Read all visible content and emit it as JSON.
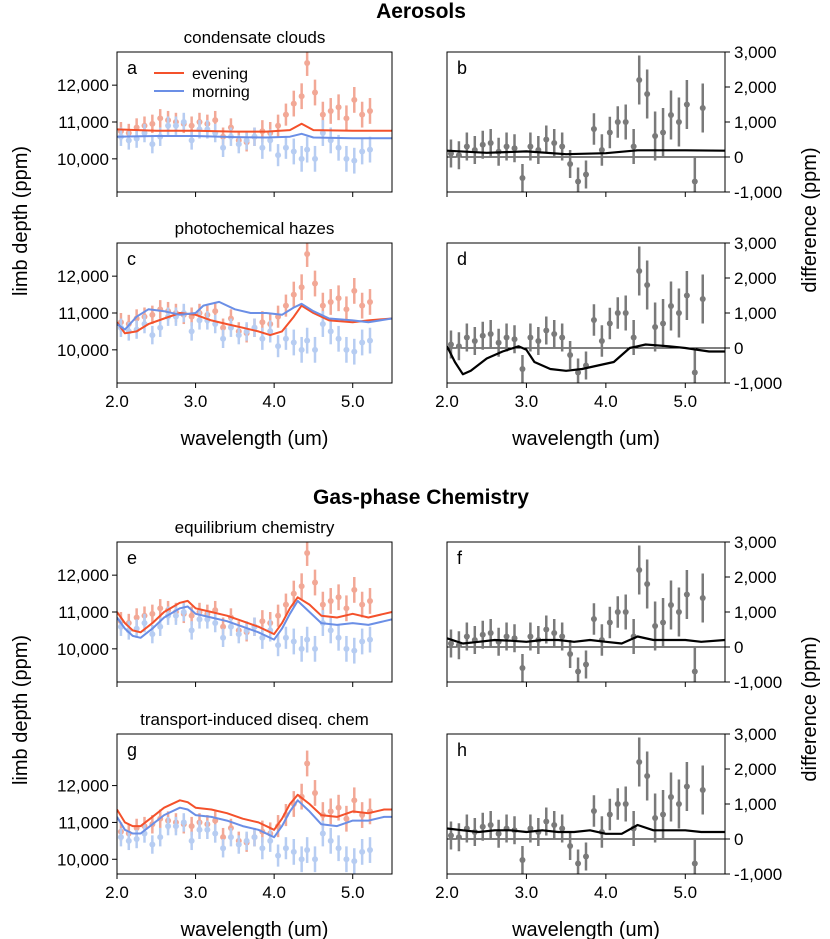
{
  "figure": {
    "section_titles": [
      "Aerosols",
      "Gas-phase Chemistry"
    ],
    "ylabel_left": "limb depth (ppm)",
    "ylabel_right": "difference (ppm)",
    "xlabel": "wavelength (um)",
    "legend": {
      "evening": "evening",
      "morning": "morning"
    },
    "colors": {
      "evening": "#f4512b",
      "morning": "#6b8fe6",
      "evening_data": "#f2a896",
      "morning_data": "#b7cdf2",
      "difference_model": "#000000",
      "difference_data": "#7a7a7a"
    }
  },
  "chart_data": [
    {
      "type": "line",
      "panel": "a",
      "title": "condensate clouds",
      "xlabel": "",
      "ylabel": "limb depth (ppm)",
      "xlim": [
        2.0,
        5.5
      ],
      "ylim": [
        9100,
        12900
      ],
      "xticks": [
        2.0,
        3.0,
        4.0,
        5.0
      ],
      "xtick_labels": [
        "2.0",
        "3.0",
        "4.0",
        "5.0"
      ],
      "yticks": [
        10000,
        11000,
        12000
      ],
      "ytick_labels": [
        "10,000",
        "11,000",
        "12,000"
      ],
      "legend": "top-left",
      "series": [
        {
          "name": "evening",
          "x": [
            2.0,
            2.5,
            3.0,
            3.5,
            3.9,
            4.2,
            4.35,
            4.5,
            5.0,
            5.5
          ],
          "y": [
            10800,
            10760,
            10760,
            10740,
            10740,
            10780,
            10950,
            10780,
            10760,
            10760
          ]
        },
        {
          "name": "morning",
          "x": [
            2.0,
            2.5,
            3.0,
            3.5,
            3.9,
            4.2,
            4.35,
            4.5,
            5.0,
            5.5
          ],
          "y": [
            10600,
            10620,
            10620,
            10590,
            10580,
            10600,
            10680,
            10580,
            10560,
            10560
          ]
        }
      ]
    },
    {
      "type": "line",
      "panel": "b",
      "title": "",
      "xlabel": "",
      "ylabel": "difference (ppm)",
      "xlim": [
        2.0,
        5.5
      ],
      "ylim": [
        -1000,
        3000
      ],
      "xticks": [
        2.0,
        3.0,
        4.0,
        5.0
      ],
      "xtick_labels": [
        "2.0",
        "3.0",
        "4.0",
        "5.0"
      ],
      "yticks": [
        -1000,
        0,
        1000,
        2000,
        3000
      ],
      "ytick_labels": [
        "-1,000",
        "0",
        "1,000",
        "2,000",
        "3,000"
      ],
      "series": [
        {
          "x": [
            2.0,
            2.5,
            3.0,
            3.5,
            4.0,
            4.4,
            5.0,
            5.5
          ],
          "y": [
            180,
            120,
            160,
            80,
            110,
            190,
            190,
            180
          ]
        }
      ]
    },
    {
      "type": "line",
      "panel": "c",
      "title": "photochemical hazes",
      "xlabel": "",
      "ylabel": "limb depth (ppm)",
      "xlim": [
        2.0,
        5.5
      ],
      "ylim": [
        9100,
        12900
      ],
      "xticks": [
        2.0,
        3.0,
        4.0,
        5.0
      ],
      "xtick_labels": [
        "2.0",
        "3.0",
        "4.0",
        "5.0"
      ],
      "yticks": [
        10000,
        11000,
        12000
      ],
      "ytick_labels": [
        "10,000",
        "11,000",
        "12,000"
      ],
      "series": [
        {
          "name": "evening",
          "x": [
            2.0,
            2.1,
            2.25,
            2.4,
            2.6,
            2.8,
            3.0,
            3.2,
            3.4,
            3.6,
            3.8,
            3.95,
            4.1,
            4.25,
            4.35,
            4.5,
            4.7,
            5.0,
            5.2,
            5.5
          ],
          "y": [
            10750,
            10450,
            10500,
            10700,
            10850,
            11000,
            10950,
            10800,
            10700,
            10600,
            10500,
            10400,
            10500,
            10900,
            11200,
            11000,
            10800,
            10750,
            10800,
            10850
          ]
        },
        {
          "name": "morning",
          "x": [
            2.0,
            2.1,
            2.25,
            2.4,
            2.6,
            2.8,
            3.0,
            3.1,
            3.3,
            3.5,
            3.7,
            3.9,
            4.1,
            4.25,
            4.35,
            4.5,
            4.7,
            5.0,
            5.2,
            5.5
          ],
          "y": [
            10700,
            10550,
            10900,
            11100,
            11050,
            10950,
            11000,
            11200,
            11300,
            11100,
            11000,
            11000,
            10950,
            11150,
            11250,
            11050,
            10850,
            10800,
            10750,
            10850
          ]
        }
      ]
    },
    {
      "type": "line",
      "panel": "d",
      "title": "",
      "xlabel": "wavelength (um)",
      "ylabel": "difference (ppm)",
      "xlim": [
        2.0,
        5.5
      ],
      "ylim": [
        -1000,
        3000
      ],
      "xticks": [
        2.0,
        3.0,
        4.0,
        5.0
      ],
      "xtick_labels": [
        "2.0",
        "3.0",
        "4.0",
        "5.0"
      ],
      "yticks": [
        -1000,
        0,
        1000,
        2000,
        3000
      ],
      "ytick_labels": [
        "-1,000",
        "0",
        "1,000",
        "2,000",
        "3,000"
      ],
      "series": [
        {
          "x": [
            2.0,
            2.1,
            2.2,
            2.3,
            2.5,
            2.7,
            2.9,
            3.0,
            3.1,
            3.3,
            3.5,
            3.7,
            3.9,
            4.1,
            4.3,
            4.5,
            4.8,
            5.0,
            5.3,
            5.5
          ],
          "y": [
            50,
            -400,
            -750,
            -650,
            -300,
            -100,
            50,
            -50,
            -400,
            -600,
            -650,
            -600,
            -500,
            -400,
            0,
            100,
            50,
            0,
            -100,
            -100
          ]
        }
      ]
    },
    {
      "type": "line",
      "panel": "e",
      "title": "equilibrium chemistry",
      "xlabel": "",
      "ylabel": "limb depth (ppm)",
      "xlim": [
        2.0,
        5.5
      ],
      "ylim": [
        9100,
        12900
      ],
      "xticks": [
        2.0,
        3.0,
        4.0,
        5.0
      ],
      "xtick_labels": [
        "2.0",
        "3.0",
        "4.0",
        "5.0"
      ],
      "yticks": [
        10000,
        11000,
        12000
      ],
      "ytick_labels": [
        "10,000",
        "11,000",
        "12,000"
      ],
      "series": [
        {
          "name": "evening",
          "x": [
            2.0,
            2.1,
            2.2,
            2.3,
            2.45,
            2.6,
            2.8,
            2.9,
            3.0,
            3.2,
            3.4,
            3.6,
            3.8,
            4.0,
            4.1,
            4.2,
            4.3,
            4.45,
            4.6,
            4.8,
            5.0,
            5.2,
            5.4,
            5.5
          ],
          "y": [
            11000,
            10700,
            10500,
            10450,
            10700,
            11000,
            11250,
            11300,
            11100,
            11000,
            10900,
            10750,
            10600,
            10400,
            10700,
            11100,
            11400,
            11200,
            10900,
            10850,
            10950,
            10850,
            10950,
            11000
          ]
        },
        {
          "name": "morning",
          "x": [
            2.0,
            2.1,
            2.2,
            2.3,
            2.45,
            2.6,
            2.8,
            2.9,
            3.0,
            3.2,
            3.4,
            3.6,
            3.8,
            4.0,
            4.1,
            4.2,
            4.3,
            4.45,
            4.6,
            4.8,
            5.0,
            5.2,
            5.4,
            5.5
          ],
          "y": [
            10850,
            10550,
            10350,
            10300,
            10550,
            10850,
            11100,
            11150,
            10950,
            10850,
            10750,
            10600,
            10450,
            10250,
            10550,
            10950,
            11300,
            11000,
            10700,
            10650,
            10700,
            10650,
            10750,
            10800
          ]
        }
      ]
    },
    {
      "type": "line",
      "panel": "f",
      "title": "",
      "xlabel": "",
      "ylabel": "difference (ppm)",
      "xlim": [
        2.0,
        5.5
      ],
      "ylim": [
        -1000,
        3000
      ],
      "xticks": [
        2.0,
        3.0,
        4.0,
        5.0
      ],
      "xtick_labels": [
        "2.0",
        "3.0",
        "4.0",
        "5.0"
      ],
      "yticks": [
        -1000,
        0,
        1000,
        2000,
        3000
      ],
      "ytick_labels": [
        "-1,000",
        "0",
        "1,000",
        "2,000",
        "3,000"
      ],
      "series": [
        {
          "x": [
            2.0,
            2.2,
            2.4,
            2.6,
            2.8,
            3.0,
            3.2,
            3.4,
            3.6,
            3.8,
            4.0,
            4.2,
            4.4,
            4.6,
            4.8,
            5.0,
            5.2,
            5.5
          ],
          "y": [
            250,
            100,
            150,
            200,
            180,
            150,
            200,
            200,
            150,
            200,
            150,
            100,
            300,
            200,
            200,
            200,
            150,
            200
          ]
        }
      ]
    },
    {
      "type": "line",
      "panel": "g",
      "title": "transport-induced diseq. chem",
      "xlabel": "",
      "ylabel": "limb depth (ppm)",
      "xlim": [
        2.0,
        5.5
      ],
      "ylim": [
        9600,
        13400
      ],
      "xticks": [
        2.0,
        3.0,
        4.0,
        5.0
      ],
      "xtick_labels": [
        "2.0",
        "3.0",
        "4.0",
        "5.0"
      ],
      "yticks": [
        10000,
        11000,
        12000
      ],
      "ytick_labels": [
        "10,000",
        "11,000",
        "12,000"
      ],
      "series": [
        {
          "name": "evening",
          "x": [
            2.0,
            2.1,
            2.2,
            2.3,
            2.45,
            2.6,
            2.8,
            2.9,
            3.0,
            3.2,
            3.4,
            3.6,
            3.8,
            4.0,
            4.1,
            4.2,
            4.3,
            4.45,
            4.6,
            4.8,
            5.0,
            5.2,
            5.4,
            5.5
          ],
          "y": [
            11350,
            11000,
            10900,
            10900,
            11150,
            11400,
            11600,
            11550,
            11400,
            11350,
            11250,
            11100,
            11000,
            10800,
            11100,
            11500,
            11750,
            11500,
            11200,
            11150,
            11300,
            11250,
            11350,
            11350
          ]
        },
        {
          "name": "morning",
          "x": [
            2.0,
            2.1,
            2.2,
            2.3,
            2.45,
            2.6,
            2.8,
            2.9,
            3.0,
            3.2,
            3.4,
            3.6,
            3.8,
            4.0,
            4.1,
            4.2,
            4.3,
            4.45,
            4.6,
            4.8,
            5.0,
            5.2,
            5.4,
            5.5
          ],
          "y": [
            11150,
            10800,
            10700,
            10700,
            10950,
            11200,
            11400,
            11350,
            11200,
            11150,
            11050,
            10900,
            10800,
            10600,
            10900,
            11300,
            11600,
            11300,
            10950,
            10900,
            11050,
            11050,
            11150,
            11150
          ]
        }
      ]
    },
    {
      "type": "line",
      "panel": "h",
      "title": "",
      "xlabel": "wavelength (um)",
      "ylabel": "difference (ppm)",
      "xlim": [
        2.0,
        5.5
      ],
      "ylim": [
        -1000,
        3000
      ],
      "xticks": [
        2.0,
        3.0,
        4.0,
        5.0
      ],
      "xtick_labels": [
        "2.0",
        "3.0",
        "4.0",
        "5.0"
      ],
      "yticks": [
        -1000,
        0,
        1000,
        2000,
        3000
      ],
      "ytick_labels": [
        "-1,000",
        "0",
        "1,000",
        "2,000",
        "3,000"
      ],
      "series": [
        {
          "x": [
            2.0,
            2.2,
            2.4,
            2.6,
            2.8,
            3.0,
            3.2,
            3.4,
            3.6,
            3.8,
            4.0,
            4.2,
            4.4,
            4.6,
            4.8,
            5.0,
            5.2,
            5.5
          ],
          "y": [
            300,
            250,
            200,
            250,
            250,
            200,
            250,
            200,
            200,
            250,
            150,
            150,
            400,
            250,
            250,
            250,
            200,
            200
          ]
        }
      ]
    }
  ],
  "observations": {
    "evening": {
      "x": [
        2.05,
        2.15,
        2.25,
        2.35,
        2.45,
        2.55,
        2.65,
        2.75,
        2.85,
        2.95,
        3.05,
        3.15,
        3.25,
        3.35,
        3.45,
        3.55,
        3.65,
        3.75,
        3.85,
        3.95,
        4.05,
        4.15,
        4.25,
        4.35,
        4.42,
        4.52,
        4.62,
        4.72,
        4.82,
        4.92,
        5.02,
        5.12,
        5.22
      ],
      "y": [
        10750,
        10700,
        10850,
        10900,
        10950,
        11100,
        11050,
        11000,
        10950,
        10900,
        11000,
        10950,
        11050,
        10600,
        10850,
        10500,
        10450,
        10600,
        10750,
        10700,
        10900,
        11200,
        11500,
        11700,
        12600,
        11800,
        11200,
        11300,
        11400,
        11100,
        11600,
        11200,
        11300
      ],
      "err": [
        250,
        250,
        250,
        250,
        250,
        250,
        250,
        250,
        250,
        250,
        250,
        250,
        250,
        250,
        250,
        250,
        250,
        250,
        300,
        300,
        300,
        300,
        350,
        350,
        350,
        350,
        350,
        350,
        350,
        350,
        350,
        350,
        350
      ]
    },
    "morning": {
      "x": [
        2.05,
        2.15,
        2.25,
        2.35,
        2.45,
        2.55,
        2.65,
        2.75,
        2.85,
        2.95,
        3.05,
        3.15,
        3.25,
        3.35,
        3.45,
        3.55,
        3.65,
        3.75,
        3.85,
        3.95,
        4.05,
        4.15,
        4.25,
        4.35,
        4.42,
        4.52,
        4.62,
        4.72,
        4.82,
        4.92,
        5.02,
        5.12,
        5.22
      ],
      "y": [
        10600,
        10500,
        10550,
        10700,
        10400,
        10600,
        10900,
        10900,
        11000,
        10500,
        10800,
        10800,
        10700,
        10300,
        10600,
        10400,
        10500,
        10600,
        10300,
        10500,
        10100,
        10300,
        10200,
        10000,
        10250,
        10000,
        10700,
        10500,
        10300,
        10000,
        9950,
        10200,
        10250
      ],
      "err": [
        250,
        250,
        250,
        250,
        250,
        250,
        250,
        250,
        250,
        250,
        250,
        250,
        250,
        250,
        250,
        250,
        250,
        250,
        300,
        300,
        300,
        300,
        350,
        350,
        350,
        350,
        350,
        350,
        350,
        350,
        350,
        350,
        350
      ]
    },
    "difference": {
      "x": [
        2.05,
        2.15,
        2.25,
        2.35,
        2.45,
        2.55,
        2.65,
        2.75,
        2.85,
        2.95,
        3.05,
        3.15,
        3.25,
        3.35,
        3.45,
        3.55,
        3.65,
        3.75,
        3.85,
        3.95,
        4.05,
        4.15,
        4.25,
        4.35,
        4.42,
        4.52,
        4.62,
        4.72,
        4.82,
        4.92,
        5.02,
        5.12,
        5.22
      ],
      "y": [
        100,
        50,
        300,
        200,
        350,
        400,
        150,
        300,
        250,
        -600,
        300,
        200,
        500,
        400,
        300,
        -200,
        -700,
        -500,
        800,
        200,
        700,
        1000,
        1000,
        300,
        2200,
        1800,
        600,
        700,
        1200,
        1000,
        1500,
        -700,
        1400
      ],
      "err": [
        400,
        400,
        400,
        400,
        400,
        400,
        400,
        400,
        400,
        400,
        400,
        400,
        400,
        400,
        400,
        400,
        400,
        400,
        450,
        450,
        450,
        450,
        500,
        500,
        700,
        700,
        700,
        700,
        700,
        700,
        700,
        700,
        700
      ]
    }
  }
}
